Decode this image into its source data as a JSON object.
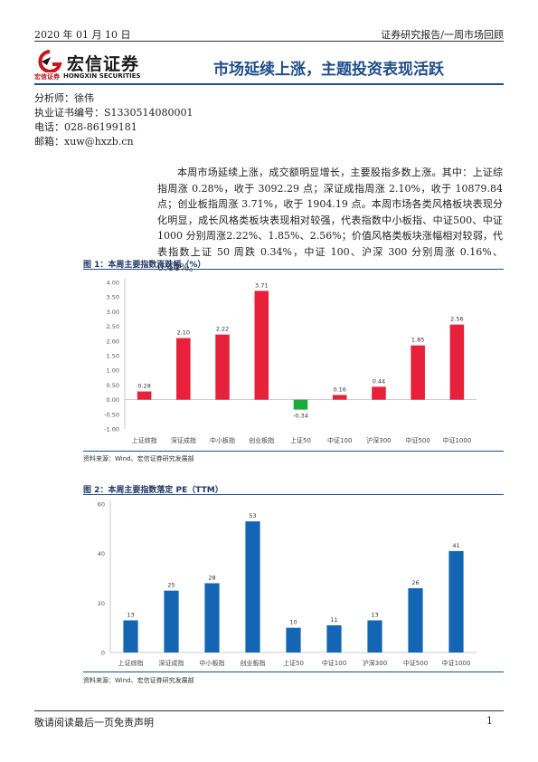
{
  "header": {
    "date": "2020 年 01 月 10 日",
    "report_type": "证券研究报告/一周市场回顾"
  },
  "logo": {
    "name_cn": "宏信证券",
    "sub_cn": "宏信证券",
    "sub_en": "HONGXIN SECURITIES"
  },
  "title": "市场延续上涨，主题投资表现活跃",
  "analyst": {
    "name": "分析师：徐伟",
    "license": "执业证书编号：S1330514080001",
    "phone": "电话：028-86199181",
    "email": "邮箱：xuw@hxzb.cn"
  },
  "summary": "本周市场延续上涨，成交额明显增长，主要股指多数上涨。其中：上证综指周涨 0.28%，收于 3092.29 点；深证成指周涨 2.10%，收于 10879.84 点；创业板指周涨 3.71%，收于 1904.19 点。本周市场各类风格板块表现分化明显，成长风格类板块表现相对较强，代表指数中小板指、中证500、中证 1000 分别周涨2.22%、1.85%、2.56%；价值风格类板块涨幅相对较弱，代表指数上证 50 周跌 0.34%，中证 100、沪深 300 分别周涨 0.16%、0.44%。",
  "figure1": {
    "title": "图 1：本周主要指数涨跌幅（%）",
    "source": "资料来源：Wind、宏信证券研究发展部"
  },
  "figure2": {
    "title": "图 2：本周主要指数落定 PE（TTM）",
    "source": "资料来源：Wind、宏信证券研究发展部"
  },
  "chart_data": [
    {
      "type": "bar",
      "categories": [
        "上证综指",
        "深证成指",
        "中小板指",
        "创业板指",
        "上证50",
        "中证100",
        "沪深300",
        "中证500",
        "中证1000"
      ],
      "values": [
        0.28,
        2.1,
        2.22,
        3.71,
        -0.34,
        0.16,
        0.44,
        1.85,
        2.56
      ],
      "data_labels": [
        "0.28",
        "2.10",
        "2.22",
        "3.71",
        "-0.34",
        "0.16",
        "0.44",
        "1.85",
        "2.56"
      ],
      "yticks": [
        "4.00",
        "3.50",
        "3.00",
        "2.50",
        "2.00",
        "1.50",
        "1.00",
        "0.50",
        "0.00",
        "-0.50",
        "-1.00"
      ],
      "ylim": [
        -1.0,
        4.0
      ],
      "title": "",
      "xlabel": "",
      "ylabel": "",
      "positive_color": "#e8213a",
      "negative_color": "#1ea83c",
      "grid": false
    },
    {
      "type": "bar",
      "categories": [
        "上证综指",
        "深证成指",
        "中小板指",
        "创业板指",
        "上证50",
        "中证100",
        "沪深300",
        "中证500",
        "中证1000"
      ],
      "values": [
        13,
        25,
        28,
        53,
        10,
        11,
        13,
        26,
        41
      ],
      "data_labels": [
        "13",
        "25",
        "28",
        "53",
        "10",
        "11",
        "13",
        "26",
        "41"
      ],
      "yticks": [
        "60",
        "40",
        "20",
        "0"
      ],
      "ylim": [
        0,
        60
      ],
      "title": "",
      "xlabel": "",
      "ylabel": "",
      "color": "#1565b5",
      "grid": false
    }
  ],
  "footer": {
    "disclaimer": "敬请阅读最后一页免责声明",
    "page": "1"
  }
}
